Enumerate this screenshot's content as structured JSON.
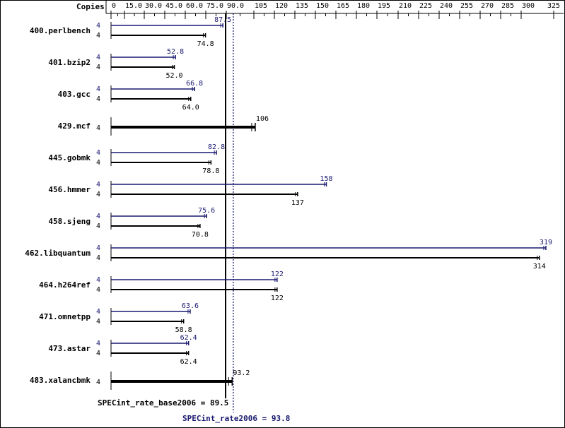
{
  "chart_data": {
    "type": "bar",
    "copies_label": "Copies",
    "x_ticks": [
      "0",
      "15.0",
      "30.0",
      "45.0",
      "60.0",
      "75.0",
      "90.0",
      "105",
      "120",
      "135",
      "150",
      "165",
      "180",
      "195",
      "210",
      "225",
      "240",
      "255",
      "270",
      "285",
      "300",
      "325"
    ],
    "x_tick_values": [
      0,
      15,
      30,
      45,
      60,
      75,
      90,
      105,
      120,
      135,
      150,
      165,
      180,
      195,
      210,
      225,
      240,
      255,
      270,
      285,
      300,
      325
    ],
    "xlim": [
      0,
      325
    ],
    "colors": {
      "base": "#000000",
      "peak": "#191970"
    },
    "benchmarks": [
      {
        "name": "400.perlbench",
        "peak_copies": "4",
        "base_copies": "4",
        "peak": 87.5,
        "base": 74.8,
        "peak_label": "87.5",
        "base_label": "74.8"
      },
      {
        "name": "401.bzip2",
        "peak_copies": "4",
        "base_copies": "4",
        "peak": 52.8,
        "base": 52.0,
        "peak_label": "52.8",
        "base_label": "52.0"
      },
      {
        "name": "403.gcc",
        "peak_copies": "4",
        "base_copies": "4",
        "peak": 66.8,
        "base": 64.0,
        "peak_label": "66.8",
        "base_label": "64.0"
      },
      {
        "name": "429.mcf",
        "base_copies": "4",
        "base": 106,
        "base_label": "106"
      },
      {
        "name": "445.gobmk",
        "peak_copies": "4",
        "base_copies": "4",
        "peak": 82.8,
        "base": 78.8,
        "peak_label": "82.8",
        "base_label": "78.8"
      },
      {
        "name": "456.hmmer",
        "peak_copies": "4",
        "base_copies": "4",
        "peak": 158,
        "base": 137,
        "peak_label": "158",
        "base_label": "137"
      },
      {
        "name": "458.sjeng",
        "peak_copies": "4",
        "base_copies": "4",
        "peak": 75.6,
        "base": 70.8,
        "peak_label": "75.6",
        "base_label": "70.8"
      },
      {
        "name": "462.libquantum",
        "peak_copies": "4",
        "base_copies": "4",
        "peak": 319,
        "base": 314,
        "peak_label": "319",
        "base_label": "314"
      },
      {
        "name": "464.h264ref",
        "peak_copies": "4",
        "base_copies": "4",
        "peak": 122,
        "base": 122,
        "peak_label": "122",
        "base_label": "122"
      },
      {
        "name": "471.omnetpp",
        "peak_copies": "4",
        "base_copies": "4",
        "peak": 63.6,
        "base": 58.8,
        "peak_label": "63.6",
        "base_label": "58.8"
      },
      {
        "name": "473.astar",
        "peak_copies": "4",
        "base_copies": "4",
        "peak": 62.4,
        "base": 62.4,
        "peak_label": "62.4",
        "base_label": "62.4"
      },
      {
        "name": "483.xalancbmk",
        "base_copies": "4",
        "base": 93.2,
        "base_label": "93.2"
      }
    ],
    "base_mean": {
      "label": "SPECint_rate_base2006 = 89.5",
      "value": 89.5
    },
    "peak_mean": {
      "label": "SPECint_rate2006 = 93.8",
      "value": 93.8
    },
    "grid": false
  }
}
